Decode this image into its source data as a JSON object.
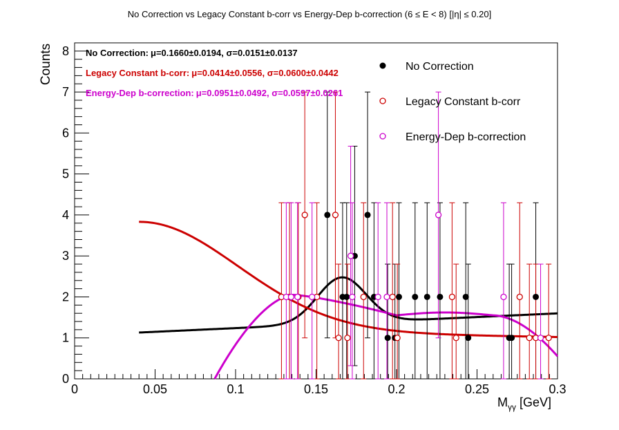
{
  "chart_data": {
    "type": "scatter",
    "title": "No Correction vs Legacy Constant b-corr vs Energy-Dep b-correction   (6 ≤ E < 8)   [|η| ≤ 0.20]",
    "xlabel": "M_γγ [GeV]",
    "xlabel_main": "M",
    "xlabel_sub": "γγ",
    "xlabel_unit": " [GeV]",
    "ylabel": "Counts",
    "xlim": [
      0,
      0.3
    ],
    "ylim": [
      0,
      8.2
    ],
    "x_ticks": [
      "0",
      "0.05",
      "0.1",
      "0.15",
      "0.2",
      "0.25",
      "0.3"
    ],
    "x_tick_values": [
      0,
      0.05,
      0.1,
      0.15,
      0.2,
      0.25,
      0.3
    ],
    "y_ticks": [
      "0",
      "1",
      "2",
      "3",
      "4",
      "5",
      "6",
      "7",
      "8"
    ],
    "y_tick_values": [
      0,
      1,
      2,
      3,
      4,
      5,
      6,
      7,
      8
    ],
    "grid": false,
    "legend_position": "top-right",
    "annotations": [
      {
        "series": "No Correction",
        "label": "No Correction:",
        "mu": "μ=0.1660±0.0194",
        "sigma": "σ=0.0151±0.0137",
        "color": "#000000"
      },
      {
        "series": "Legacy Constant b-corr",
        "label": "Legacy Constant b-corr:",
        "mu": "μ=0.0414±0.0556",
        "sigma": "σ=0.0600±0.0442",
        "color": "#cc0000"
      },
      {
        "series": "Energy-Dep b-correction",
        "label": "Energy-Dep b-correction:",
        "mu": "μ=0.0951±0.0492",
        "sigma": "σ=0.0597±0.0261",
        "color": "#cc00cc"
      }
    ],
    "series": [
      {
        "name": "No Correction",
        "color": "#000000",
        "marker": "filled-circle",
        "points": [
          {
            "x": 0.157,
            "y": 4
          },
          {
            "x": 0.1665,
            "y": 2
          },
          {
            "x": 0.169,
            "y": 2
          },
          {
            "x": 0.174,
            "y": 3
          },
          {
            "x": 0.182,
            "y": 4
          },
          {
            "x": 0.186,
            "y": 2
          },
          {
            "x": 0.1945,
            "y": 1
          },
          {
            "x": 0.199,
            "y": 1
          },
          {
            "x": 0.2015,
            "y": 2
          },
          {
            "x": 0.2115,
            "y": 2
          },
          {
            "x": 0.219,
            "y": 2
          },
          {
            "x": 0.227,
            "y": 2
          },
          {
            "x": 0.243,
            "y": 2
          },
          {
            "x": 0.2445,
            "y": 1
          },
          {
            "x": 0.27,
            "y": 1
          },
          {
            "x": 0.2715,
            "y": 1
          },
          {
            "x": 0.2865,
            "y": 2
          }
        ],
        "fit": {
          "type": "gaussian+linear",
          "mean": 0.166,
          "sigma": 0.0151,
          "amplitude": 1.12,
          "baseline_at_0.04": 1.13,
          "baseline_slope": 1.8,
          "baseline_x0": 0.04,
          "x_range": [
            0.04,
            0.3
          ]
        }
      },
      {
        "name": "Legacy Constant b-corr",
        "color": "#cc0000",
        "marker": "open-circle",
        "points": [
          {
            "x": 0.1285,
            "y": 2
          },
          {
            "x": 0.1335,
            "y": 2
          },
          {
            "x": 0.139,
            "y": 2
          },
          {
            "x": 0.143,
            "y": 4
          },
          {
            "x": 0.1505,
            "y": 2
          },
          {
            "x": 0.162,
            "y": 4
          },
          {
            "x": 0.164,
            "y": 1
          },
          {
            "x": 0.1695,
            "y": 1
          },
          {
            "x": 0.1795,
            "y": 2
          },
          {
            "x": 0.1975,
            "y": 2
          },
          {
            "x": 0.2005,
            "y": 1
          },
          {
            "x": 0.2345,
            "y": 2
          },
          {
            "x": 0.237,
            "y": 1
          },
          {
            "x": 0.2765,
            "y": 2
          },
          {
            "x": 0.2825,
            "y": 1
          },
          {
            "x": 0.2865,
            "y": 1
          },
          {
            "x": 0.2945,
            "y": 1
          }
        ],
        "fit": {
          "type": "gaussian+linear",
          "mean": 0.0414,
          "sigma": 0.06,
          "x_range": [
            0.04,
            0.3
          ]
        }
      },
      {
        "name": "Energy-Dep b-correction",
        "color": "#cc00cc",
        "marker": "open-circle",
        "points": [
          {
            "x": 0.1315,
            "y": 2
          },
          {
            "x": 0.1345,
            "y": 2
          },
          {
            "x": 0.1385,
            "y": 2
          },
          {
            "x": 0.1475,
            "y": 2
          },
          {
            "x": 0.1715,
            "y": 3
          },
          {
            "x": 0.1725,
            "y": 2
          },
          {
            "x": 0.1885,
            "y": 2
          },
          {
            "x": 0.194,
            "y": 2
          },
          {
            "x": 0.226,
            "y": 4
          },
          {
            "x": 0.2665,
            "y": 2
          },
          {
            "x": 0.2895,
            "y": 1
          }
        ],
        "fit": {
          "type": "gaussian+polynomial",
          "mean": 0.0951,
          "sigma": 0.0597,
          "x_range": [
            0.087,
            0.3
          ]
        }
      }
    ]
  }
}
